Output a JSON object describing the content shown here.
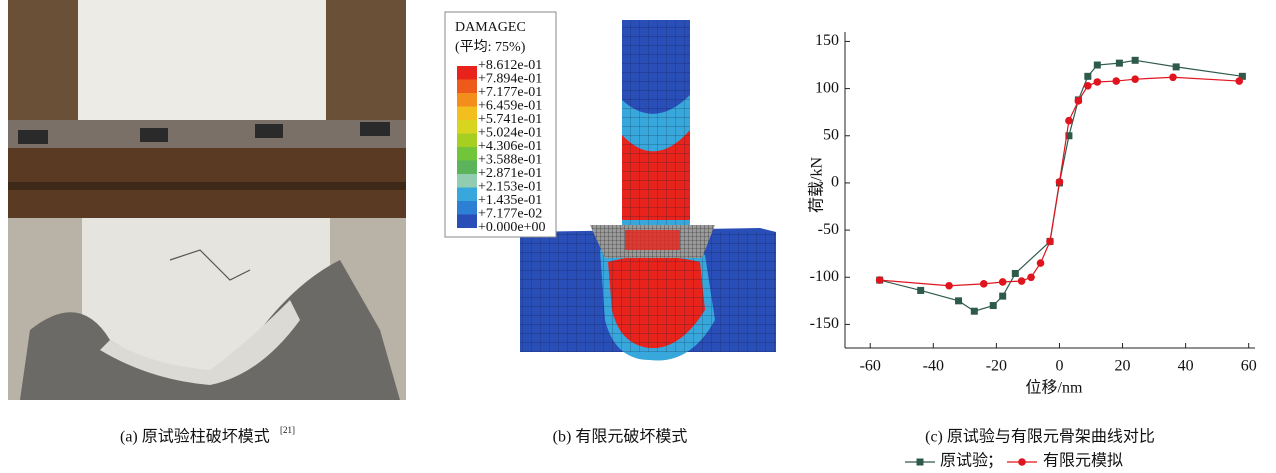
{
  "panel_a": {
    "caption": "(a) 原试验柱破坏模式",
    "citation": "[21]"
  },
  "panel_b": {
    "caption": "(b) 有限元破坏模式",
    "legend_title": "DAMAGEC",
    "legend_subtitle": "(平均: 75%)",
    "legend_labels": [
      "+8.612e-01",
      "+7.894e-01",
      "+7.177e-01",
      "+6.459e-01",
      "+5.741e-01",
      "+5.024e-01",
      "+4.306e-01",
      "+3.588e-01",
      "+2.871e-01",
      "+2.153e-01",
      "+1.435e-01",
      "+7.177e-02",
      "+0.000e+00"
    ],
    "legend_colors": [
      "#e8231c",
      "#ee5a1a",
      "#f38e1c",
      "#f2bf1e",
      "#d8d520",
      "#a6cf22",
      "#72c43a",
      "#5bb45c",
      "#93cdb1",
      "#38a8dc",
      "#2c7fd2",
      "#2a4eb8"
    ]
  },
  "chart_data": {
    "type": "line",
    "caption": "(c) 原试验与有限元骨架曲线对比",
    "x_label": "位移/nm",
    "y_label": "荷载/kN",
    "xlim": [
      -68,
      62
    ],
    "ylim": [
      -175,
      160
    ],
    "xticks": [
      -60,
      -40,
      -20,
      0,
      20,
      40,
      60
    ],
    "yticks": [
      -150,
      -100,
      -50,
      0,
      50,
      100,
      150
    ],
    "legend_separator": "；",
    "series": [
      {
        "name": "原试验",
        "color": "#2e5a4c",
        "marker": "square",
        "x": [
          -57,
          -44,
          -32,
          -27,
          -21,
          -18,
          -14,
          -3,
          0,
          3,
          6,
          9,
          12,
          19,
          24,
          37,
          58
        ],
        "values": [
          -103,
          -114,
          -125,
          -136,
          -130,
          -120,
          -96,
          -62,
          0,
          50,
          88,
          113,
          125,
          127,
          130,
          123,
          113
        ]
      },
      {
        "name": "有限元模拟",
        "color": "#e0141e",
        "marker": "circle",
        "x": [
          -57,
          -35,
          -24,
          -18,
          -12,
          -9,
          -6,
          -3,
          0,
          3,
          6,
          9,
          12,
          18,
          24,
          36,
          57
        ],
        "values": [
          -103,
          -109,
          -107,
          -105,
          -104,
          -100,
          -85,
          -62,
          1,
          66,
          87,
          103,
          107,
          108,
          110,
          112,
          108
        ]
      }
    ]
  }
}
